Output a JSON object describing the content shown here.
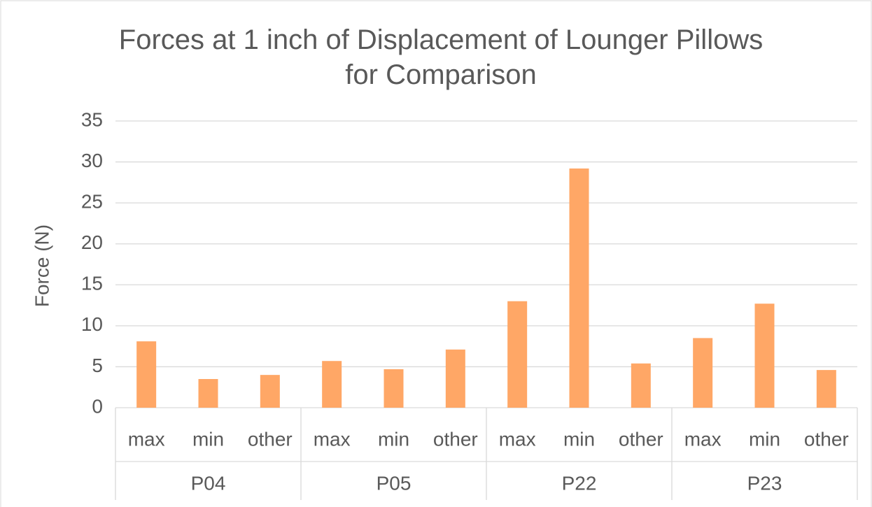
{
  "chart_data": {
    "type": "bar",
    "title": "Forces at 1 inch of Displacement of Lounger Pillows for Comparison",
    "y_label": "Force (N)",
    "groups": [
      "P04",
      "P05",
      "P22",
      "P23"
    ],
    "categories": [
      "max",
      "min",
      "other",
      "max",
      "min",
      "other",
      "max",
      "min",
      "other",
      "max",
      "min",
      "other"
    ],
    "values": [
      8.1,
      3.5,
      4.0,
      5.7,
      4.7,
      7.1,
      13.0,
      29.2,
      5.4,
      8.5,
      12.7,
      4.6
    ],
    "color": "#ffa766",
    "ylim": [
      0,
      35
    ],
    "yticks": [
      0,
      5,
      10,
      15,
      20,
      25,
      30,
      35
    ],
    "grid": true
  }
}
